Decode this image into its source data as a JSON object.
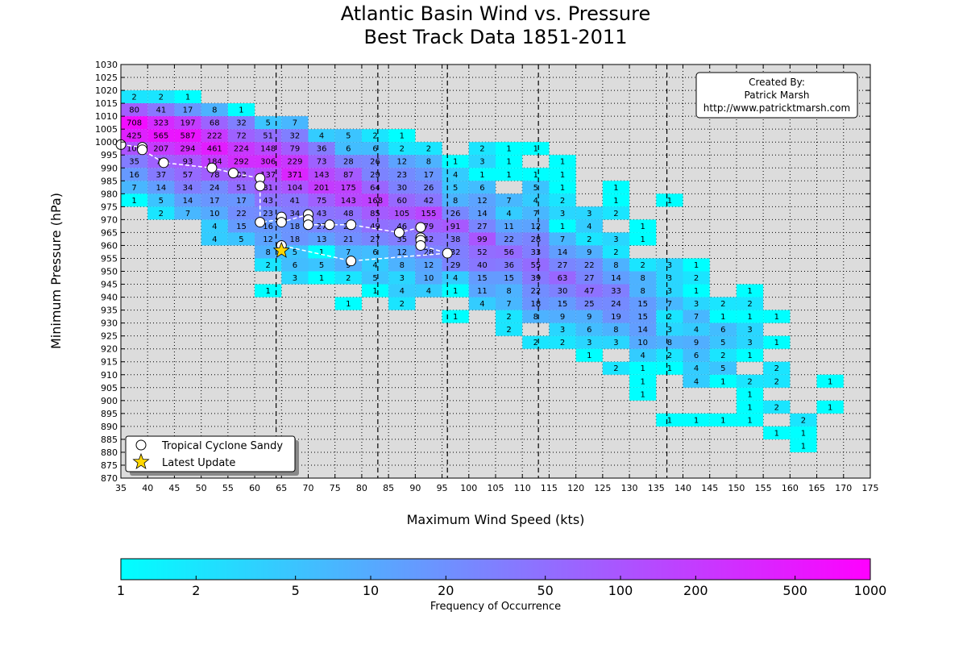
{
  "chart_data": {
    "type": "heatmap",
    "title": "Atlantic Basin Wind vs. Pressure",
    "subtitle": "Best Track Data 1851-2011",
    "xlabel": "Maximum Wind Speed (kts)",
    "ylabel": "Minimum Pressure (hPa)",
    "xlim": [
      35,
      175
    ],
    "ylim": [
      870,
      1030
    ],
    "x_bin_size": 5,
    "y_bin_size": 5,
    "x_ticks": [
      35,
      40,
      45,
      50,
      55,
      60,
      65,
      70,
      75,
      80,
      85,
      90,
      95,
      100,
      105,
      110,
      115,
      120,
      125,
      130,
      135,
      140,
      145,
      150,
      155,
      160,
      165,
      170,
      175
    ],
    "y_ticks": [
      870,
      875,
      880,
      885,
      890,
      895,
      900,
      905,
      910,
      915,
      920,
      925,
      930,
      935,
      940,
      945,
      950,
      955,
      960,
      965,
      970,
      975,
      980,
      985,
      990,
      995,
      1000,
      1005,
      1010,
      1015,
      1020,
      1025,
      1030
    ],
    "grid": true,
    "background_color": "#dcdcdc",
    "vertical_dashed_lines_x": [
      64,
      83,
      96,
      113,
      137
    ],
    "colorbar": {
      "label": "Frequency of Occurrence",
      "scale": "log",
      "range": [
        1,
        1000
      ],
      "tick_values": [
        1,
        2,
        5,
        10,
        20,
        50,
        100,
        200,
        500,
        1000
      ],
      "tick_labels": [
        "1",
        "2",
        "5",
        "10",
        "20",
        "50",
        "100",
        "200",
        "500",
        "1000"
      ],
      "color_min": "#00ffff",
      "color_max": "#ff00ff"
    },
    "cells_order": "wind bin lower edge (kts), pressure bin lower edge (hPa), count",
    "cells": [
      [
        35,
        1015,
        2
      ],
      [
        40,
        1015,
        2
      ],
      [
        45,
        1015,
        1
      ],
      [
        35,
        1010,
        80
      ],
      [
        40,
        1010,
        41
      ],
      [
        45,
        1010,
        17
      ],
      [
        50,
        1010,
        8
      ],
      [
        55,
        1010,
        1
      ],
      [
        35,
        1005,
        708
      ],
      [
        40,
        1005,
        323
      ],
      [
        45,
        1005,
        197
      ],
      [
        50,
        1005,
        68
      ],
      [
        55,
        1005,
        32
      ],
      [
        60,
        1005,
        5
      ],
      [
        65,
        1005,
        7
      ],
      [
        35,
        1000,
        425
      ],
      [
        40,
        1000,
        565
      ],
      [
        45,
        1000,
        587
      ],
      [
        50,
        1000,
        222
      ],
      [
        55,
        1000,
        72
      ],
      [
        60,
        1000,
        51
      ],
      [
        65,
        1000,
        32
      ],
      [
        70,
        1000,
        4
      ],
      [
        75,
        1000,
        5
      ],
      [
        80,
        1000,
        2
      ],
      [
        85,
        1000,
        1
      ],
      [
        35,
        995,
        105
      ],
      [
        40,
        995,
        207
      ],
      [
        45,
        995,
        294
      ],
      [
        50,
        995,
        461
      ],
      [
        55,
        995,
        224
      ],
      [
        60,
        995,
        148
      ],
      [
        65,
        995,
        79
      ],
      [
        70,
        995,
        36
      ],
      [
        75,
        995,
        6
      ],
      [
        80,
        995,
        6
      ],
      [
        85,
        995,
        2
      ],
      [
        90,
        995,
        2
      ],
      [
        100,
        995,
        2
      ],
      [
        105,
        995,
        1
      ],
      [
        110,
        995,
        1
      ],
      [
        35,
        990,
        35
      ],
      [
        40,
        990,
        74
      ],
      [
        45,
        990,
        93
      ],
      [
        50,
        990,
        184
      ],
      [
        55,
        990,
        292
      ],
      [
        60,
        990,
        306
      ],
      [
        65,
        990,
        229
      ],
      [
        70,
        990,
        73
      ],
      [
        75,
        990,
        28
      ],
      [
        80,
        990,
        26
      ],
      [
        85,
        990,
        12
      ],
      [
        90,
        990,
        8
      ],
      [
        95,
        990,
        1
      ],
      [
        100,
        990,
        3
      ],
      [
        105,
        990,
        1
      ],
      [
        115,
        990,
        1
      ],
      [
        35,
        985,
        16
      ],
      [
        40,
        985,
        37
      ],
      [
        45,
        985,
        57
      ],
      [
        50,
        985,
        78
      ],
      [
        55,
        985,
        83
      ],
      [
        60,
        985,
        137
      ],
      [
        65,
        985,
        371
      ],
      [
        70,
        985,
        143
      ],
      [
        75,
        985,
        87
      ],
      [
        80,
        985,
        29
      ],
      [
        85,
        985,
        23
      ],
      [
        90,
        985,
        17
      ],
      [
        95,
        985,
        4
      ],
      [
        100,
        985,
        1
      ],
      [
        105,
        985,
        1
      ],
      [
        110,
        985,
        1
      ],
      [
        115,
        985,
        1
      ],
      [
        35,
        980,
        7
      ],
      [
        40,
        980,
        14
      ],
      [
        45,
        980,
        34
      ],
      [
        50,
        980,
        24
      ],
      [
        55,
        980,
        51
      ],
      [
        60,
        980,
        81
      ],
      [
        65,
        980,
        104
      ],
      [
        70,
        980,
        201
      ],
      [
        75,
        980,
        175
      ],
      [
        80,
        980,
        64
      ],
      [
        85,
        980,
        30
      ],
      [
        90,
        980,
        26
      ],
      [
        95,
        980,
        5
      ],
      [
        100,
        980,
        6
      ],
      [
        110,
        980,
        5
      ],
      [
        115,
        980,
        1
      ],
      [
        125,
        980,
        1
      ],
      [
        35,
        975,
        1
      ],
      [
        40,
        975,
        5
      ],
      [
        45,
        975,
        14
      ],
      [
        50,
        975,
        17
      ],
      [
        55,
        975,
        17
      ],
      [
        60,
        975,
        43
      ],
      [
        65,
        975,
        41
      ],
      [
        70,
        975,
        75
      ],
      [
        75,
        975,
        143
      ],
      [
        80,
        975,
        168
      ],
      [
        85,
        975,
        60
      ],
      [
        90,
        975,
        42
      ],
      [
        95,
        975,
        8
      ],
      [
        100,
        975,
        12
      ],
      [
        105,
        975,
        7
      ],
      [
        110,
        975,
        4
      ],
      [
        115,
        975,
        2
      ],
      [
        125,
        975,
        1
      ],
      [
        135,
        975,
        1
      ],
      [
        40,
        970,
        2
      ],
      [
        45,
        970,
        7
      ],
      [
        50,
        970,
        10
      ],
      [
        55,
        970,
        22
      ],
      [
        60,
        970,
        23
      ],
      [
        65,
        970,
        34
      ],
      [
        70,
        970,
        43
      ],
      [
        75,
        970,
        48
      ],
      [
        80,
        970,
        85
      ],
      [
        85,
        970,
        105
      ],
      [
        90,
        970,
        155
      ],
      [
        95,
        970,
        26
      ],
      [
        100,
        970,
        14
      ],
      [
        105,
        970,
        4
      ],
      [
        110,
        970,
        7
      ],
      [
        115,
        970,
        3
      ],
      [
        120,
        970,
        3
      ],
      [
        125,
        970,
        2
      ],
      [
        50,
        965,
        4
      ],
      [
        55,
        965,
        15
      ],
      [
        60,
        965,
        16
      ],
      [
        65,
        965,
        18
      ],
      [
        70,
        965,
        27
      ],
      [
        75,
        965,
        27
      ],
      [
        80,
        965,
        49
      ],
      [
        85,
        965,
        46
      ],
      [
        90,
        965,
        79
      ],
      [
        95,
        965,
        91
      ],
      [
        100,
        965,
        27
      ],
      [
        105,
        965,
        11
      ],
      [
        110,
        965,
        12
      ],
      [
        115,
        965,
        1
      ],
      [
        120,
        965,
        4
      ],
      [
        130,
        965,
        1
      ],
      [
        50,
        960,
        4
      ],
      [
        55,
        960,
        5
      ],
      [
        60,
        960,
        12
      ],
      [
        65,
        960,
        18
      ],
      [
        70,
        960,
        13
      ],
      [
        75,
        960,
        21
      ],
      [
        80,
        960,
        27
      ],
      [
        85,
        960,
        35
      ],
      [
        90,
        960,
        42
      ],
      [
        95,
        960,
        38
      ],
      [
        100,
        960,
        99
      ],
      [
        105,
        960,
        22
      ],
      [
        110,
        960,
        28
      ],
      [
        115,
        960,
        7
      ],
      [
        120,
        960,
        2
      ],
      [
        125,
        960,
        3
      ],
      [
        130,
        960,
        1
      ],
      [
        60,
        955,
        8
      ],
      [
        65,
        955,
        5
      ],
      [
        70,
        955,
        1
      ],
      [
        75,
        955,
        7
      ],
      [
        80,
        955,
        6
      ],
      [
        85,
        955,
        12
      ],
      [
        90,
        955,
        28
      ],
      [
        95,
        955,
        32
      ],
      [
        100,
        955,
        52
      ],
      [
        105,
        955,
        56
      ],
      [
        110,
        955,
        33
      ],
      [
        115,
        955,
        14
      ],
      [
        120,
        955,
        9
      ],
      [
        125,
        955,
        2
      ],
      [
        60,
        950,
        2
      ],
      [
        65,
        950,
        6
      ],
      [
        70,
        950,
        5
      ],
      [
        75,
        950,
        9
      ],
      [
        80,
        950,
        4
      ],
      [
        85,
        950,
        8
      ],
      [
        90,
        950,
        12
      ],
      [
        95,
        950,
        29
      ],
      [
        100,
        950,
        40
      ],
      [
        105,
        950,
        36
      ],
      [
        110,
        950,
        55
      ],
      [
        115,
        950,
        27
      ],
      [
        120,
        950,
        22
      ],
      [
        125,
        950,
        8
      ],
      [
        130,
        950,
        2
      ],
      [
        135,
        950,
        3
      ],
      [
        140,
        950,
        1
      ],
      [
        65,
        945,
        3
      ],
      [
        70,
        945,
        1
      ],
      [
        75,
        945,
        2
      ],
      [
        80,
        945,
        5
      ],
      [
        85,
        945,
        3
      ],
      [
        90,
        945,
        10
      ],
      [
        95,
        945,
        4
      ],
      [
        100,
        945,
        15
      ],
      [
        105,
        945,
        15
      ],
      [
        110,
        945,
        39
      ],
      [
        115,
        945,
        63
      ],
      [
        120,
        945,
        27
      ],
      [
        125,
        945,
        14
      ],
      [
        130,
        945,
        8
      ],
      [
        135,
        945,
        3
      ],
      [
        140,
        945,
        2
      ],
      [
        60,
        940,
        1
      ],
      [
        80,
        940,
        1
      ],
      [
        85,
        940,
        4
      ],
      [
        90,
        940,
        4
      ],
      [
        95,
        940,
        1
      ],
      [
        100,
        940,
        11
      ],
      [
        105,
        940,
        8
      ],
      [
        110,
        940,
        22
      ],
      [
        115,
        940,
        30
      ],
      [
        120,
        940,
        47
      ],
      [
        125,
        940,
        33
      ],
      [
        130,
        940,
        8
      ],
      [
        135,
        940,
        3
      ],
      [
        140,
        940,
        1
      ],
      [
        150,
        940,
        1
      ],
      [
        75,
        935,
        1
      ],
      [
        85,
        935,
        2
      ],
      [
        100,
        935,
        4
      ],
      [
        105,
        935,
        7
      ],
      [
        110,
        935,
        18
      ],
      [
        115,
        935,
        15
      ],
      [
        120,
        935,
        25
      ],
      [
        125,
        935,
        24
      ],
      [
        130,
        935,
        15
      ],
      [
        135,
        935,
        7
      ],
      [
        140,
        935,
        3
      ],
      [
        145,
        935,
        2
      ],
      [
        150,
        935,
        2
      ],
      [
        95,
        930,
        1
      ],
      [
        105,
        930,
        2
      ],
      [
        110,
        930,
        8
      ],
      [
        115,
        930,
        9
      ],
      [
        120,
        930,
        9
      ],
      [
        125,
        930,
        19
      ],
      [
        130,
        930,
        15
      ],
      [
        135,
        930,
        2
      ],
      [
        140,
        930,
        7
      ],
      [
        145,
        930,
        1
      ],
      [
        150,
        930,
        1
      ],
      [
        155,
        930,
        1
      ],
      [
        105,
        925,
        2
      ],
      [
        115,
        925,
        3
      ],
      [
        120,
        925,
        6
      ],
      [
        125,
        925,
        8
      ],
      [
        130,
        925,
        14
      ],
      [
        135,
        925,
        3
      ],
      [
        140,
        925,
        4
      ],
      [
        145,
        925,
        6
      ],
      [
        150,
        925,
        3
      ],
      [
        110,
        920,
        2
      ],
      [
        115,
        920,
        2
      ],
      [
        120,
        920,
        3
      ],
      [
        125,
        920,
        3
      ],
      [
        130,
        920,
        10
      ],
      [
        135,
        920,
        8
      ],
      [
        140,
        920,
        9
      ],
      [
        145,
        920,
        5
      ],
      [
        150,
        920,
        3
      ],
      [
        155,
        920,
        1
      ],
      [
        120,
        915,
        1
      ],
      [
        130,
        915,
        4
      ],
      [
        135,
        915,
        2
      ],
      [
        140,
        915,
        6
      ],
      [
        145,
        915,
        2
      ],
      [
        150,
        915,
        1
      ],
      [
        125,
        910,
        2
      ],
      [
        130,
        910,
        1
      ],
      [
        135,
        910,
        1
      ],
      [
        140,
        910,
        4
      ],
      [
        145,
        910,
        5
      ],
      [
        155,
        910,
        2
      ],
      [
        130,
        905,
        1
      ],
      [
        140,
        905,
        4
      ],
      [
        145,
        905,
        1
      ],
      [
        150,
        905,
        2
      ],
      [
        155,
        905,
        2
      ],
      [
        165,
        905,
        1
      ],
      [
        130,
        900,
        1
      ],
      [
        150,
        900,
        1
      ],
      [
        150,
        895,
        1
      ],
      [
        155,
        895,
        2
      ],
      [
        165,
        895,
        1
      ],
      [
        135,
        890,
        1
      ],
      [
        140,
        890,
        1
      ],
      [
        145,
        890,
        1
      ],
      [
        150,
        890,
        1
      ],
      [
        160,
        890,
        2
      ],
      [
        155,
        885,
        1
      ],
      [
        160,
        885,
        1
      ],
      [
        160,
        880,
        1
      ]
    ],
    "series": [
      {
        "name": "Tropical Cyclone Sandy",
        "marker": "circle",
        "connected": true,
        "points": [
          [
            35,
            999
          ],
          [
            39,
            998
          ],
          [
            39,
            997
          ],
          [
            43,
            992
          ],
          [
            52,
            990
          ],
          [
            56,
            988
          ],
          [
            61,
            986
          ],
          [
            61,
            983
          ],
          [
            61,
            969
          ],
          [
            65,
            970
          ],
          [
            65,
            971
          ],
          [
            65,
            969
          ],
          [
            70,
            972
          ],
          [
            70,
            970
          ],
          [
            70,
            968
          ],
          [
            74,
            968
          ],
          [
            78,
            968
          ],
          [
            87,
            965
          ],
          [
            91,
            967
          ],
          [
            91,
            963
          ],
          [
            91,
            962
          ],
          [
            91,
            960
          ],
          [
            96,
            957
          ],
          [
            78,
            954
          ],
          [
            65,
            960
          ]
        ]
      },
      {
        "name": "Latest Update",
        "marker": "star",
        "color": "#ffd700",
        "points": [
          [
            65,
            958
          ]
        ]
      }
    ],
    "legend": "lower-left",
    "annotation": {
      "lines": [
        "Created By:",
        "Patrick Marsh",
        "http://www.patricktmarsh.com"
      ],
      "position": "top-right"
    }
  }
}
